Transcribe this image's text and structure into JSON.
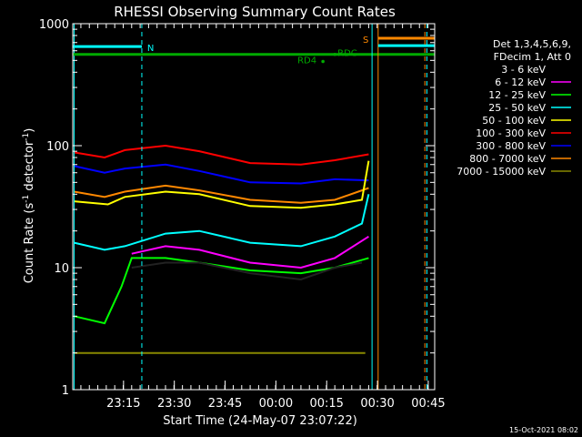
{
  "chart_data": {
    "type": "line",
    "title": "RHESSI Observing Summary Count Rates",
    "xlabel": "Start Time (24-May-07 23:07:22)",
    "ylabel_main": "Count Rate (s",
    "ylabel_sup1": "-1",
    "ylabel_mid": " detector",
    "ylabel_sup2": "-1",
    "ylabel_end": ")",
    "yscale": "log",
    "ylim": [
      1,
      1000
    ],
    "xlim_min": [
      -7.4,
      99.5
    ],
    "x_unit": "minutes after 23:07:22",
    "y_ticks": [
      {
        "value": 1,
        "label": "1"
      },
      {
        "value": 10,
        "label": "10"
      },
      {
        "value": 100,
        "label": "100"
      },
      {
        "value": 1000,
        "label": "1000"
      }
    ],
    "x_ticks": [
      {
        "value": 7.6,
        "label": "23:15"
      },
      {
        "value": 22.6,
        "label": "23:30"
      },
      {
        "value": 37.6,
        "label": "23:45"
      },
      {
        "value": 52.6,
        "label": "00:00"
      },
      {
        "value": 67.6,
        "label": "00:15"
      },
      {
        "value": 82.6,
        "label": "00:30"
      },
      {
        "value": 97.6,
        "label": "00:45"
      }
    ],
    "legend_title": [
      "Det 1,3,4,5,6,9,",
      "FDecim 1, Att 0"
    ],
    "legend_position": "right",
    "series": [
      {
        "name": "3 - 6 keV",
        "color": "#000000",
        "values": [
          [
            10,
            10
          ],
          [
            20,
            11
          ],
          [
            30,
            11
          ],
          [
            45,
            9
          ],
          [
            60,
            8
          ],
          [
            70,
            10
          ],
          [
            78,
            11
          ]
        ]
      },
      {
        "name": "6 - 12 keV",
        "color": "#ff00ff",
        "values": [
          [
            10,
            13
          ],
          [
            20,
            15
          ],
          [
            30,
            14
          ],
          [
            45,
            11
          ],
          [
            60,
            10
          ],
          [
            70,
            12
          ],
          [
            80,
            18
          ]
        ]
      },
      {
        "name": "12 - 25 keV",
        "color": "#00ff00",
        "values": [
          [
            -7,
            4
          ],
          [
            2,
            3.5
          ],
          [
            7,
            7
          ],
          [
            10,
            12
          ],
          [
            20,
            12
          ],
          [
            30,
            11
          ],
          [
            45,
            9.5
          ],
          [
            60,
            9
          ],
          [
            70,
            10
          ],
          [
            80,
            12
          ]
        ]
      },
      {
        "name": "25 - 50 keV",
        "color": "#00ffff",
        "values": [
          [
            -7,
            16
          ],
          [
            2,
            14
          ],
          [
            8,
            15
          ],
          [
            20,
            19
          ],
          [
            30,
            20
          ],
          [
            45,
            16
          ],
          [
            60,
            15
          ],
          [
            70,
            18
          ],
          [
            78,
            23
          ],
          [
            80,
            40
          ]
        ]
      },
      {
        "name": "50 - 100 keV",
        "color": "#ffff00",
        "values": [
          [
            -7,
            35
          ],
          [
            3,
            33
          ],
          [
            8,
            38
          ],
          [
            20,
            42
          ],
          [
            30,
            40
          ],
          [
            45,
            32
          ],
          [
            60,
            31
          ],
          [
            70,
            33
          ],
          [
            78,
            36
          ],
          [
            80,
            75
          ]
        ]
      },
      {
        "name": "100 - 300 keV",
        "color": "#ff0000",
        "values": [
          [
            -7,
            88
          ],
          [
            2,
            80
          ],
          [
            8,
            92
          ],
          [
            20,
            100
          ],
          [
            30,
            90
          ],
          [
            45,
            72
          ],
          [
            60,
            70
          ],
          [
            70,
            76
          ],
          [
            80,
            85
          ]
        ]
      },
      {
        "name": "300 - 800 keV",
        "color": "#0000ff",
        "values": [
          [
            -7,
            68
          ],
          [
            2,
            60
          ],
          [
            8,
            65
          ],
          [
            20,
            70
          ],
          [
            30,
            62
          ],
          [
            45,
            50
          ],
          [
            60,
            49
          ],
          [
            70,
            53
          ],
          [
            80,
            52
          ]
        ]
      },
      {
        "name": "800 - 7000 keV",
        "color": "#ff8800",
        "values": [
          [
            -7,
            42
          ],
          [
            2,
            38
          ],
          [
            8,
            42
          ],
          [
            20,
            47
          ],
          [
            30,
            43
          ],
          [
            45,
            36
          ],
          [
            60,
            34
          ],
          [
            70,
            36
          ],
          [
            80,
            45
          ]
        ]
      },
      {
        "name": "7000 - 15000 keV",
        "color": "#888800",
        "values": [
          [
            -7,
            2
          ],
          [
            13,
            2
          ],
          [
            30,
            2
          ],
          [
            50,
            2
          ],
          [
            70,
            2
          ],
          [
            79,
            2
          ]
        ]
      }
    ],
    "annotations": [
      {
        "text": "N",
        "color": "#00ffff"
      },
      {
        "text": "S",
        "color": "#ff8800"
      },
      {
        "text": "RD4",
        "color": "#00aa00"
      },
      {
        "text": "RDC",
        "color": "#00aa00"
      }
    ],
    "timestamp": "15-Oct-2021 08:02"
  }
}
